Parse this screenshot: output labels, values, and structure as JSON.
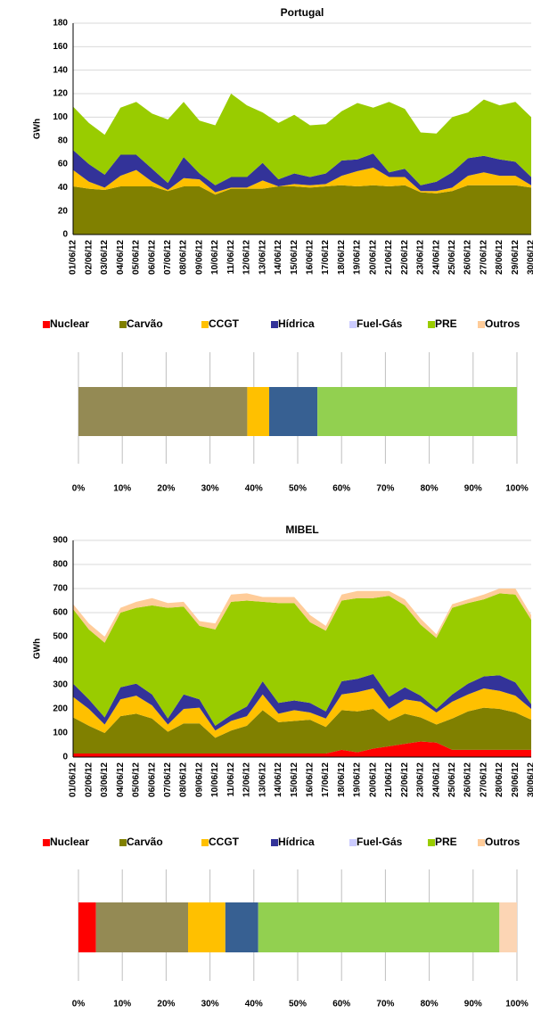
{
  "chart_data": [
    {
      "type": "area",
      "stacked": true,
      "title": "Portugal",
      "ylabel": "GWh",
      "categories": [
        "01/06/12",
        "02/06/12",
        "03/06/12",
        "04/06/12",
        "05/06/12",
        "06/06/12",
        "07/06/12",
        "08/06/12",
        "09/06/12",
        "10/06/12",
        "11/06/12",
        "12/06/12",
        "13/06/12",
        "14/06/12",
        "15/06/12",
        "16/06/12",
        "17/06/12",
        "18/06/12",
        "19/06/12",
        "20/06/12",
        "21/06/12",
        "22/06/12",
        "23/06/12",
        "24/06/12",
        "25/06/12",
        "26/06/12",
        "27/06/12",
        "28/06/12",
        "29/06/12",
        "30/06/12"
      ],
      "ylim": [
        0,
        180
      ],
      "yticks": [
        0,
        20,
        40,
        60,
        80,
        100,
        120,
        140,
        160,
        180
      ],
      "grid": true,
      "legend": "bottom",
      "series": [
        {
          "name": "Nuclear",
          "color": "#ff0000",
          "values": [
            0,
            0,
            0,
            0,
            0,
            0,
            0,
            0,
            0,
            0,
            0,
            0,
            0,
            0,
            0,
            0,
            0,
            0,
            0,
            0,
            0,
            0,
            0,
            0,
            0,
            0,
            0,
            0,
            0,
            0
          ]
        },
        {
          "name": "Carvão",
          "color": "#808000",
          "values": [
            41,
            39,
            38,
            41,
            41,
            41,
            37,
            41,
            41,
            34,
            39,
            39,
            39,
            41,
            41,
            40,
            41,
            42,
            41,
            42,
            41,
            42,
            36,
            35,
            37,
            42,
            42,
            42,
            42,
            40
          ]
        },
        {
          "name": "CCGT",
          "color": "#ffc000",
          "values": [
            14,
            6,
            2,
            9,
            14,
            4,
            1,
            7,
            6,
            2,
            1,
            1,
            7,
            0,
            2,
            2,
            2,
            8,
            13,
            15,
            8,
            7,
            1,
            2,
            3,
            8,
            11,
            8,
            8,
            2
          ]
        },
        {
          "name": "Hídrica",
          "color": "#333399",
          "values": [
            17,
            15,
            11,
            18,
            13,
            11,
            6,
            18,
            5,
            6,
            9,
            9,
            15,
            6,
            9,
            7,
            9,
            13,
            10,
            12,
            4,
            7,
            5,
            8,
            13,
            15,
            14,
            14,
            12,
            7
          ]
        },
        {
          "name": "Fuel-Gás",
          "color": "#ccccff",
          "values": [
            0,
            0,
            0,
            0,
            0,
            0,
            0,
            0,
            0,
            0,
            0,
            0,
            0,
            0,
            0,
            0,
            0,
            0,
            0,
            0,
            0,
            0,
            0,
            0,
            0,
            0,
            0,
            0,
            0,
            0
          ]
        },
        {
          "name": "PRE",
          "color": "#99cc00",
          "values": [
            37,
            35,
            34,
            40,
            45,
            47,
            54,
            47,
            45,
            51,
            71,
            61,
            43,
            48,
            50,
            44,
            42,
            42,
            48,
            39,
            60,
            51,
            45,
            41,
            47,
            39,
            48,
            46,
            51,
            51
          ]
        },
        {
          "name": "Outros",
          "color": "#ffcc99",
          "values": [
            0,
            0,
            0,
            0,
            0,
            0,
            0,
            0,
            0,
            0,
            0,
            0,
            0,
            0,
            0,
            0,
            0,
            0,
            0,
            0,
            0,
            0,
            0,
            0,
            0,
            0,
            0,
            0,
            0,
            0
          ]
        }
      ]
    },
    {
      "type": "hbar",
      "stacked": true,
      "xlim": [
        0,
        100
      ],
      "xticks": [
        {
          "value": 0,
          "label": "0%"
        },
        {
          "value": 10,
          "label": "10%"
        },
        {
          "value": 20,
          "label": "20%"
        },
        {
          "value": 30,
          "label": "30%"
        },
        {
          "value": 40,
          "label": "40%"
        },
        {
          "value": 50,
          "label": "50%"
        },
        {
          "value": 60,
          "label": "60%"
        },
        {
          "value": 70,
          "label": "70%"
        },
        {
          "value": 80,
          "label": "80%"
        },
        {
          "value": 90,
          "label": "90%"
        },
        {
          "value": 100,
          "label": "100%"
        }
      ],
      "grid": true,
      "series": [
        {
          "color": "#ff0000",
          "values": [
            0
          ]
        },
        {
          "color": "#948a54",
          "values": [
            38.5
          ]
        },
        {
          "color": "#ffc000",
          "values": [
            5
          ]
        },
        {
          "color": "#376092",
          "values": [
            11
          ]
        },
        {
          "color": "#ccc1da",
          "values": [
            0
          ]
        },
        {
          "color": "#92d050",
          "values": [
            45.5
          ]
        },
        {
          "color": "#fcd5b4",
          "values": [
            0
          ]
        }
      ]
    },
    {
      "type": "area",
      "stacked": true,
      "title": "MIBEL",
      "ylabel": "GWh",
      "categories": [
        "01/06/12",
        "02/06/12",
        "03/06/12",
        "04/06/12",
        "05/06/12",
        "06/06/12",
        "07/06/12",
        "08/06/12",
        "09/06/12",
        "10/06/12",
        "11/06/12",
        "12/06/12",
        "13/06/12",
        "14/06/12",
        "15/06/12",
        "16/06/12",
        "17/06/12",
        "18/06/12",
        "19/06/12",
        "20/06/12",
        "21/06/12",
        "22/06/12",
        "23/06/12",
        "24/06/12",
        "25/06/12",
        "26/06/12",
        "27/06/12",
        "28/06/12",
        "29/06/12",
        "30/06/12"
      ],
      "ylim": [
        0,
        900
      ],
      "yticks": [
        0,
        100,
        200,
        300,
        400,
        500,
        600,
        700,
        800,
        900
      ],
      "grid": true,
      "legend": "bottom",
      "series": [
        {
          "name": "Nuclear",
          "color": "#ff0000",
          "values": [
            15,
            15,
            15,
            15,
            15,
            15,
            15,
            15,
            15,
            15,
            15,
            15,
            15,
            15,
            15,
            15,
            15,
            30,
            20,
            35,
            45,
            55,
            65,
            60,
            30,
            30,
            30,
            30,
            30,
            30
          ]
        },
        {
          "name": "Carvão",
          "color": "#808000",
          "values": [
            150,
            115,
            85,
            155,
            165,
            145,
            90,
            125,
            125,
            65,
            95,
            115,
            180,
            130,
            135,
            140,
            110,
            165,
            170,
            165,
            105,
            125,
            100,
            75,
            130,
            160,
            175,
            170,
            155,
            125
          ]
        },
        {
          "name": "CCGT",
          "color": "#ffc000",
          "values": [
            85,
            70,
            35,
            70,
            75,
            55,
            30,
            60,
            65,
            30,
            40,
            40,
            65,
            35,
            45,
            30,
            35,
            65,
            80,
            85,
            50,
            60,
            65,
            50,
            70,
            70,
            80,
            75,
            70,
            45
          ]
        },
        {
          "name": "Hídrica",
          "color": "#333399",
          "values": [
            55,
            40,
            30,
            50,
            50,
            45,
            25,
            60,
            35,
            20,
            25,
            40,
            55,
            45,
            40,
            40,
            30,
            55,
            55,
            60,
            50,
            50,
            25,
            15,
            30,
            45,
            50,
            65,
            55,
            20
          ]
        },
        {
          "name": "Fuel-Gás",
          "color": "#ccccff",
          "values": [
            0,
            0,
            0,
            0,
            0,
            0,
            0,
            0,
            0,
            0,
            0,
            0,
            0,
            0,
            0,
            0,
            0,
            0,
            0,
            0,
            0,
            0,
            0,
            0,
            0,
            0,
            0,
            0,
            0,
            0
          ]
        },
        {
          "name": "PRE",
          "color": "#99cc00",
          "values": [
            310,
            290,
            310,
            310,
            315,
            370,
            460,
            365,
            305,
            400,
            470,
            440,
            330,
            415,
            405,
            335,
            335,
            335,
            335,
            315,
            420,
            340,
            295,
            295,
            360,
            335,
            320,
            340,
            365,
            350
          ]
        },
        {
          "name": "Outros",
          "color": "#ffcc99",
          "values": [
            20,
            25,
            25,
            20,
            25,
            30,
            20,
            20,
            20,
            25,
            30,
            30,
            20,
            25,
            25,
            30,
            20,
            25,
            30,
            30,
            20,
            25,
            25,
            15,
            15,
            15,
            20,
            20,
            25,
            20
          ]
        }
      ]
    },
    {
      "type": "hbar",
      "stacked": true,
      "xlim": [
        0,
        100
      ],
      "xticks": [
        {
          "value": 0,
          "label": "0%"
        },
        {
          "value": 10,
          "label": "10%"
        },
        {
          "value": 20,
          "label": "20%"
        },
        {
          "value": 30,
          "label": "30%"
        },
        {
          "value": 40,
          "label": "40%"
        },
        {
          "value": 50,
          "label": "50%"
        },
        {
          "value": 60,
          "label": "60%"
        },
        {
          "value": 70,
          "label": "70%"
        },
        {
          "value": 80,
          "label": "80%"
        },
        {
          "value": 90,
          "label": "90%"
        },
        {
          "value": 100,
          "label": "100%"
        }
      ],
      "grid": true,
      "series": [
        {
          "color": "#ff0000",
          "values": [
            4
          ]
        },
        {
          "color": "#948a54",
          "values": [
            21
          ]
        },
        {
          "color": "#ffc000",
          "values": [
            8.5
          ]
        },
        {
          "color": "#376092",
          "values": [
            7.5
          ]
        },
        {
          "color": "#ccc1da",
          "values": [
            0
          ]
        },
        {
          "color": "#92d050",
          "values": [
            55
          ]
        },
        {
          "color": "#fcd5b4",
          "values": [
            4
          ]
        }
      ]
    }
  ]
}
